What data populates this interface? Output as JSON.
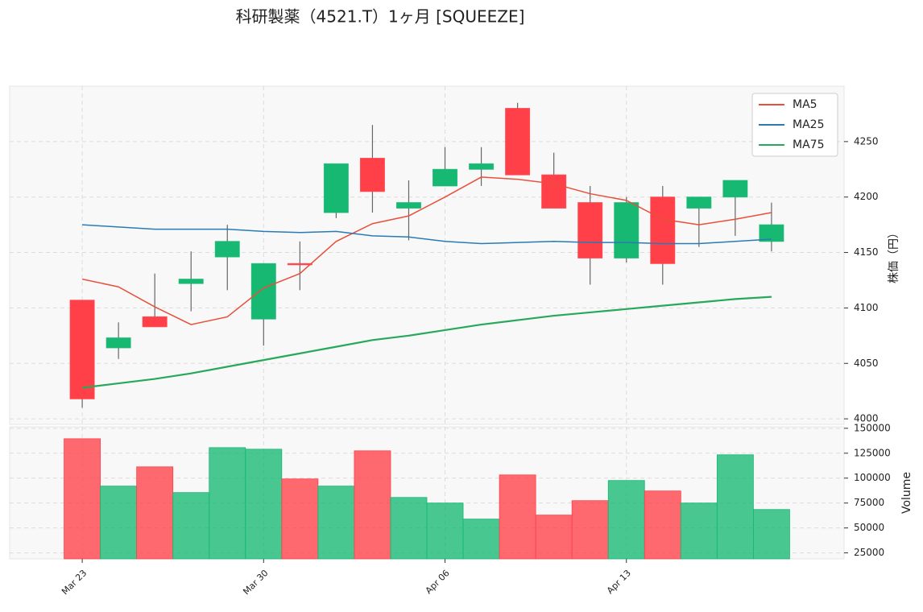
{
  "chart_data": {
    "type": "candlestick",
    "title": "科研製薬（4521.T）1ヶ月 [SQUEEZE]",
    "categories": [
      "Mar 23",
      null,
      null,
      null,
      null,
      "Mar 30",
      null,
      null,
      null,
      null,
      "Apr 06",
      null,
      null,
      null,
      null,
      "Apr 13",
      null,
      null,
      null,
      null
    ],
    "open": [
      4107,
      4064,
      4092,
      4122,
      4146,
      4090,
      4140,
      4186,
      4235,
      4190,
      4210,
      4225,
      4280,
      4220,
      4195,
      4145,
      4200,
      4190,
      4200,
      4160
    ],
    "high": [
      4107,
      4087,
      4131,
      4151,
      4175,
      4140,
      4160,
      4230,
      4265,
      4215,
      4245,
      4245,
      4285,
      4240,
      4210,
      4200,
      4210,
      4200,
      4215,
      4195
    ],
    "low": [
      4010,
      4054,
      4083,
      4097,
      4116,
      4066,
      4116,
      4181,
      4186,
      4161,
      4210,
      4210,
      4220,
      4190,
      4121,
      4141,
      4121,
      4155,
      4165,
      4151
    ],
    "close": [
      4018,
      4073,
      4083,
      4126,
      4160,
      4140,
      4140,
      4230,
      4205,
      4195,
      4225,
      4230,
      4220,
      4190,
      4145,
      4195,
      4140,
      4200,
      4215,
      4175
    ],
    "up_color": "#16b872",
    "down_color": "#ff4048",
    "series": [
      {
        "name": "MA5",
        "color": "#e8503a",
        "values": [
          4126,
          4119,
          4101,
          4085,
          4092,
          4118,
          4131,
          4160,
          4176,
          4183,
          4200,
          4218,
          4216,
          4212,
          4203,
          4197,
          4180,
          4175,
          4180,
          4186
        ]
      },
      {
        "name": "MA25",
        "color": "#2a7ab5",
        "values": [
          4175,
          4173,
          4171,
          4171,
          4171,
          4169,
          4168,
          4169,
          4165,
          4164,
          4160,
          4158,
          4159,
          4160,
          4159,
          4159,
          4158,
          4158,
          4160,
          4162
        ]
      },
      {
        "name": "MA75",
        "color": "#27a85a",
        "values": [
          4028,
          4032,
          4036,
          4041,
          4047,
          4053,
          4059,
          4065,
          4071,
          4075,
          4080,
          4085,
          4089,
          4093,
          4096,
          4099,
          4102,
          4105,
          4108,
          4110
        ]
      }
    ],
    "xlim": [
      -2,
      21
    ],
    "ylim": [
      3995,
      4300
    ],
    "yticks": [
      4000,
      4050,
      4100,
      4150,
      4200,
      4250
    ],
    "ylabel": "株価（円）",
    "volume": {
      "values": [
        139500,
        92000,
        111300,
        85500,
        130600,
        129000,
        99200,
        92000,
        127400,
        80600,
        75000,
        58900,
        103200,
        62900,
        77400,
        97600,
        87100,
        75000,
        123400,
        68500
      ],
      "ylim": [
        19000,
        151500
      ],
      "yticks": [
        25000,
        50000,
        75000,
        100000,
        125000,
        150000
      ],
      "ylabel": "Volume"
    },
    "grid": true,
    "legend": "upper right"
  }
}
